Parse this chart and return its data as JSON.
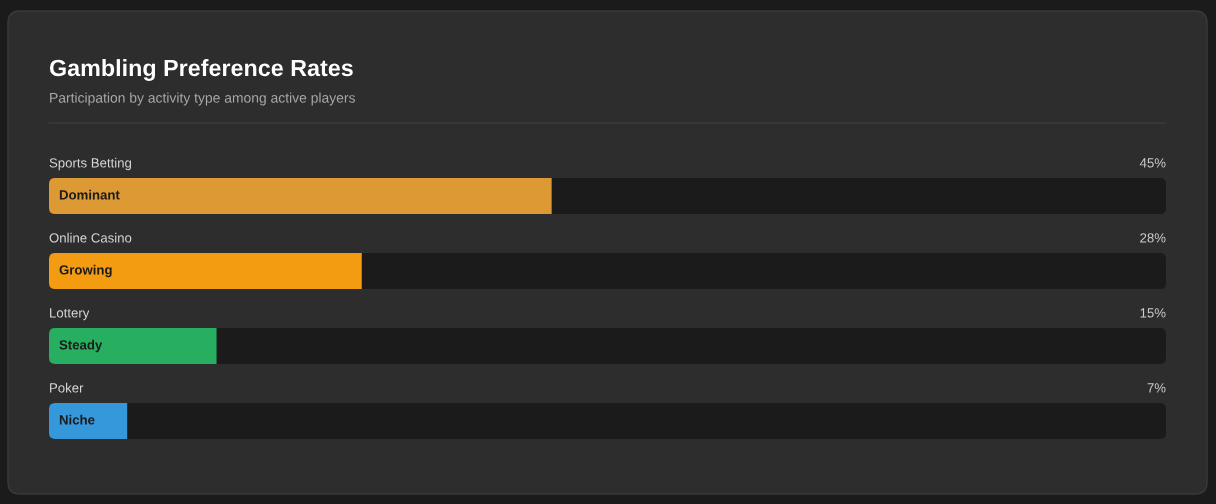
{
  "chart_data": {
    "type": "bar",
    "orientation": "horizontal",
    "title": "Gambling Preference Rates",
    "subtitle": "Participation by activity type among active players",
    "categories": [
      "Sports Betting",
      "Online Casino",
      "Lottery",
      "Poker"
    ],
    "values": [
      45,
      28,
      15,
      7
    ],
    "colors": [
      "#dd9933",
      "#f39c12",
      "#27ae60",
      "#3498db"
    ],
    "value_labels": [
      "45%",
      "28%",
      "15%",
      "7%"
    ],
    "xlim": [
      0,
      100
    ],
    "annotations": [
      "Dominant",
      "Growing",
      "Steady",
      "Niche"
    ]
  }
}
